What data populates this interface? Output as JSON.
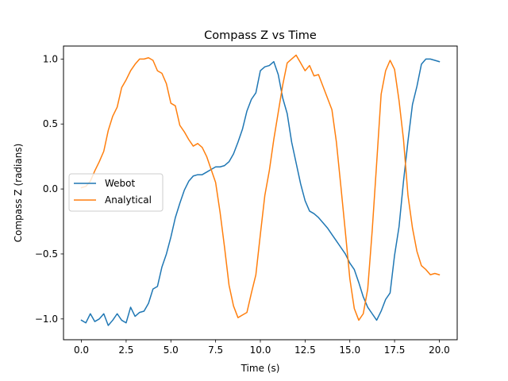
{
  "chart_data": {
    "type": "line",
    "title": "Compass Z vs Time",
    "xlabel": "Time (s)",
    "ylabel": "Compass Z (radians)",
    "xlim": [
      -1.0,
      21.0
    ],
    "ylim": [
      -1.16,
      1.1
    ],
    "xticks": [
      0.0,
      2.5,
      5.0,
      7.5,
      10.0,
      12.5,
      15.0,
      17.5,
      20.0
    ],
    "xtick_labels": [
      "0.0",
      "2.5",
      "5.0",
      "7.5",
      "10.0",
      "12.5",
      "15.0",
      "17.5",
      "20.0"
    ],
    "yticks": [
      -1.0,
      -0.5,
      0.0,
      0.5,
      1.0
    ],
    "ytick_labels": [
      "−1.0",
      "−0.5",
      "0.0",
      "0.5",
      "1.0"
    ],
    "grid": false,
    "legend_position": "center-left",
    "series": [
      {
        "name": "Webot",
        "color": "#1f77b4",
        "x": [
          0.0,
          0.25,
          0.5,
          0.75,
          1.0,
          1.25,
          1.5,
          1.75,
          2.0,
          2.25,
          2.5,
          2.75,
          3.0,
          3.25,
          3.5,
          3.75,
          4.0,
          4.25,
          4.5,
          4.75,
          5.0,
          5.25,
          5.5,
          5.75,
          6.0,
          6.25,
          6.5,
          6.75,
          7.0,
          7.25,
          7.5,
          7.75,
          8.0,
          8.25,
          8.5,
          8.75,
          9.0,
          9.25,
          9.5,
          9.75,
          10.0,
          10.25,
          10.5,
          10.75,
          11.0,
          11.25,
          11.5,
          11.75,
          12.0,
          12.25,
          12.5,
          12.75,
          13.0,
          13.25,
          13.5,
          13.75,
          14.0,
          14.25,
          14.5,
          14.75,
          15.0,
          15.25,
          15.5,
          15.75,
          16.0,
          16.25,
          16.5,
          16.75,
          17.0,
          17.25,
          17.5,
          17.75,
          18.0,
          18.25,
          18.5,
          18.75,
          19.0,
          19.25,
          19.5,
          19.75,
          20.0
        ],
        "y": [
          -1.01,
          -1.03,
          -0.96,
          -1.02,
          -1.0,
          -0.96,
          -1.05,
          -1.01,
          -0.96,
          -1.01,
          -1.03,
          -0.91,
          -0.98,
          -0.95,
          -0.94,
          -0.88,
          -0.77,
          -0.75,
          -0.6,
          -0.5,
          -0.37,
          -0.22,
          -0.11,
          -0.01,
          0.06,
          0.1,
          0.11,
          0.11,
          0.13,
          0.15,
          0.17,
          0.17,
          0.18,
          0.21,
          0.27,
          0.36,
          0.46,
          0.6,
          0.69,
          0.74,
          0.91,
          0.94,
          0.95,
          0.98,
          0.88,
          0.7,
          0.58,
          0.36,
          0.2,
          0.04,
          -0.09,
          -0.17,
          -0.19,
          -0.22,
          -0.26,
          -0.3,
          -0.35,
          -0.4,
          -0.45,
          -0.5,
          -0.57,
          -0.62,
          -0.72,
          -0.83,
          -0.91,
          -0.96,
          -1.01,
          -0.94,
          -0.85,
          -0.8,
          -0.51,
          -0.29,
          0.06,
          0.37,
          0.65,
          0.79,
          0.96,
          1.0,
          1.0,
          0.99,
          0.98
        ]
      },
      {
        "name": "Analytical",
        "color": "#ff7f0e",
        "x": [
          0.0,
          0.25,
          0.5,
          0.75,
          1.0,
          1.25,
          1.5,
          1.75,
          2.0,
          2.25,
          2.5,
          2.75,
          3.0,
          3.25,
          3.5,
          3.75,
          4.0,
          4.25,
          4.5,
          4.75,
          5.0,
          5.25,
          5.5,
          5.75,
          6.0,
          6.25,
          6.5,
          6.75,
          7.0,
          7.25,
          7.5,
          7.75,
          8.0,
          8.25,
          8.5,
          8.75,
          9.0,
          9.25,
          9.5,
          9.75,
          10.0,
          10.25,
          10.5,
          10.75,
          11.0,
          11.25,
          11.5,
          11.75,
          12.0,
          12.25,
          12.5,
          12.75,
          13.0,
          13.25,
          13.5,
          13.75,
          14.0,
          14.25,
          14.5,
          14.75,
          15.0,
          15.25,
          15.5,
          15.75,
          16.0,
          16.25,
          16.5,
          16.75,
          17.0,
          17.25,
          17.5,
          17.75,
          18.0,
          18.25,
          18.5,
          18.75,
          19.0,
          19.25,
          19.5,
          19.75,
          20.0
        ],
        "y": [
          0.01,
          0.02,
          0.06,
          0.14,
          0.21,
          0.29,
          0.45,
          0.56,
          0.63,
          0.78,
          0.84,
          0.91,
          0.96,
          1.0,
          1.0,
          1.01,
          0.99,
          0.91,
          0.89,
          0.81,
          0.66,
          0.64,
          0.49,
          0.44,
          0.38,
          0.33,
          0.35,
          0.32,
          0.25,
          0.15,
          0.05,
          -0.18,
          -0.45,
          -0.74,
          -0.9,
          -0.99,
          -0.97,
          -0.95,
          -0.8,
          -0.66,
          -0.35,
          -0.05,
          0.14,
          0.38,
          0.59,
          0.8,
          0.97,
          1.0,
          1.03,
          0.97,
          0.91,
          0.95,
          0.87,
          0.88,
          0.79,
          0.7,
          0.61,
          0.36,
          0.02,
          -0.33,
          -0.69,
          -0.92,
          -1.01,
          -0.96,
          -0.77,
          -0.32,
          0.2,
          0.73,
          0.91,
          0.99,
          0.92,
          0.68,
          0.38,
          -0.05,
          -0.3,
          -0.48,
          -0.59,
          -0.62,
          -0.66,
          -0.65,
          -0.66
        ]
      }
    ]
  }
}
